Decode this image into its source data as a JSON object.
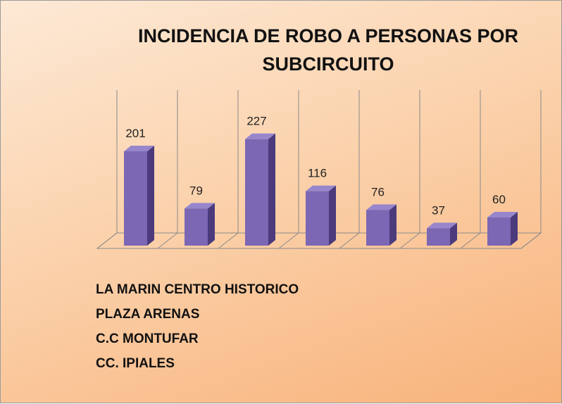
{
  "chart_data": {
    "type": "bar3d",
    "title": "INCIDENCIA DE ROBO A PERSONAS POR SUBCIRCUITO",
    "categories": [
      null,
      null,
      null,
      null,
      null,
      null,
      null
    ],
    "values": [
      201,
      79,
      227,
      116,
      76,
      37,
      60
    ],
    "color": "#7b67b3",
    "ylim": [
      0,
      300
    ],
    "annotations": [
      "LA MARIN CENTRO HISTORICO",
      "PLAZA ARENAS",
      "C.C MONTUFAR",
      "CC. IPIALES"
    ]
  }
}
